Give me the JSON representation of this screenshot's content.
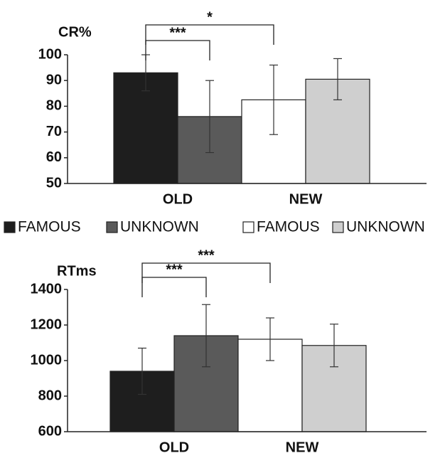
{
  "chart_data": [
    {
      "type": "bar",
      "y_label": "CR%",
      "categories": [
        "OLD",
        "NEW"
      ],
      "series": [
        {
          "name": "FAMOUS",
          "color": "#1e1e1e",
          "values": [
            93,
            null
          ],
          "errors": [
            7,
            null
          ]
        },
        {
          "name": "UNKNOWN",
          "color": "#5a5a5a",
          "values": [
            76,
            null
          ],
          "errors": [
            14,
            null
          ]
        },
        {
          "name": "FAMOUS",
          "color": "#ffffff",
          "values": [
            null,
            82.5
          ],
          "errors": [
            null,
            13.5
          ]
        },
        {
          "name": "UNKNOWN",
          "color": "#cfcfcf",
          "values": [
            null,
            90.5
          ],
          "errors": [
            null,
            8
          ]
        }
      ],
      "ylim": [
        50,
        100
      ],
      "yticks": [
        50,
        60,
        70,
        80,
        90,
        100
      ],
      "grid": false,
      "annotations": [
        "***",
        "*"
      ]
    },
    {
      "type": "bar",
      "y_label": "RTms",
      "categories": [
        "OLD",
        "NEW"
      ],
      "series": [
        {
          "color": "#1e1e1e",
          "values": [
            940,
            null
          ],
          "errors": [
            130,
            null
          ]
        },
        {
          "color": "#5a5a5a",
          "values": [
            1140,
            null
          ],
          "errors": [
            175,
            null
          ]
        },
        {
          "color": "#ffffff",
          "values": [
            null,
            1120
          ],
          "errors": [
            null,
            120
          ]
        },
        {
          "color": "#cfcfcf",
          "values": [
            null,
            1085
          ],
          "errors": [
            null,
            120
          ]
        }
      ],
      "ylim": [
        600,
        1400
      ],
      "yticks": [
        600,
        800,
        1000,
        1200,
        1400
      ],
      "grid": false,
      "annotations": [
        "***",
        "***"
      ]
    }
  ]
}
